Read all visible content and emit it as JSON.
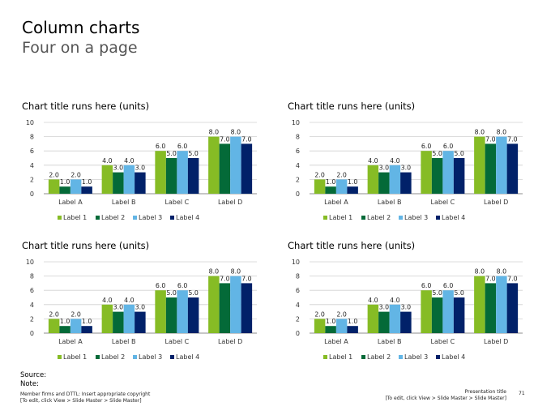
{
  "slide": {
    "title": "Column charts",
    "subtitle": "Four on a page",
    "source_label": "Source:",
    "note_label": "Note:",
    "footer_left_line1": "Member firms and DTTL: Insert appropriate copyright",
    "footer_left_line2": "[To edit, click View > Slide Master > Slide Master]",
    "footer_right_line1": "Presentation title",
    "footer_right_line2": "[To edit, click View > Slide Master > Slide Master]",
    "page_number": "71"
  },
  "colors": {
    "series": [
      "#86bc25",
      "#046a38",
      "#62b5e5",
      "#012169"
    ],
    "grid": "#d0d0d0",
    "axis": "#8c8c8c"
  },
  "chart_data": [
    {
      "type": "bar",
      "title": "Chart title runs here (units)",
      "categories": [
        "Label A",
        "Label B",
        "Label C",
        "Label D"
      ],
      "series": [
        {
          "name": "Label 1",
          "values": [
            2.0,
            4.0,
            6.0,
            8.0
          ]
        },
        {
          "name": "Label 2",
          "values": [
            1.0,
            3.0,
            5.0,
            7.0
          ]
        },
        {
          "name": "Label 3",
          "values": [
            2.0,
            4.0,
            6.0,
            8.0
          ]
        },
        {
          "name": "Label 4",
          "values": [
            1.0,
            3.0,
            5.0,
            7.0
          ]
        }
      ],
      "yticks": [
        "0",
        "2",
        "4",
        "6",
        "8",
        "10"
      ],
      "ylim": [
        0,
        10
      ],
      "grid": true,
      "legend": "bottom"
    },
    {
      "type": "bar",
      "title": "Chart title runs here (units)",
      "categories": [
        "Label A",
        "Label B",
        "Label C",
        "Label D"
      ],
      "series": [
        {
          "name": "Label 1",
          "values": [
            2.0,
            4.0,
            6.0,
            8.0
          ]
        },
        {
          "name": "Label 2",
          "values": [
            1.0,
            3.0,
            5.0,
            7.0
          ]
        },
        {
          "name": "Label 3",
          "values": [
            2.0,
            4.0,
            6.0,
            8.0
          ]
        },
        {
          "name": "Label 4",
          "values": [
            1.0,
            3.0,
            5.0,
            7.0
          ]
        }
      ],
      "yticks": [
        "0",
        "2",
        "4",
        "6",
        "8",
        "10"
      ],
      "ylim": [
        0,
        10
      ],
      "grid": true,
      "legend": "bottom"
    },
    {
      "type": "bar",
      "title": "Chart title runs here (units)",
      "categories": [
        "Label A",
        "Label B",
        "Label C",
        "Label D"
      ],
      "series": [
        {
          "name": "Label 1",
          "values": [
            2.0,
            4.0,
            6.0,
            8.0
          ]
        },
        {
          "name": "Label 2",
          "values": [
            1.0,
            3.0,
            5.0,
            7.0
          ]
        },
        {
          "name": "Label 3",
          "values": [
            2.0,
            4.0,
            6.0,
            8.0
          ]
        },
        {
          "name": "Label 4",
          "values": [
            1.0,
            3.0,
            5.0,
            7.0
          ]
        }
      ],
      "yticks": [
        "0",
        "2",
        "4",
        "6",
        "8",
        "10"
      ],
      "ylim": [
        0,
        10
      ],
      "grid": true,
      "legend": "bottom"
    },
    {
      "type": "bar",
      "title": "Chart title runs here (units)",
      "categories": [
        "Label A",
        "Label B",
        "Label C",
        "Label D"
      ],
      "series": [
        {
          "name": "Label 1",
          "values": [
            2.0,
            4.0,
            6.0,
            8.0
          ]
        },
        {
          "name": "Label 2",
          "values": [
            1.0,
            3.0,
            5.0,
            7.0
          ]
        },
        {
          "name": "Label 3",
          "values": [
            2.0,
            4.0,
            6.0,
            8.0
          ]
        },
        {
          "name": "Label 4",
          "values": [
            1.0,
            3.0,
            5.0,
            7.0
          ]
        }
      ],
      "yticks": [
        "0",
        "2",
        "4",
        "6",
        "8",
        "10"
      ],
      "ylim": [
        0,
        10
      ],
      "grid": true,
      "legend": "bottom"
    }
  ]
}
